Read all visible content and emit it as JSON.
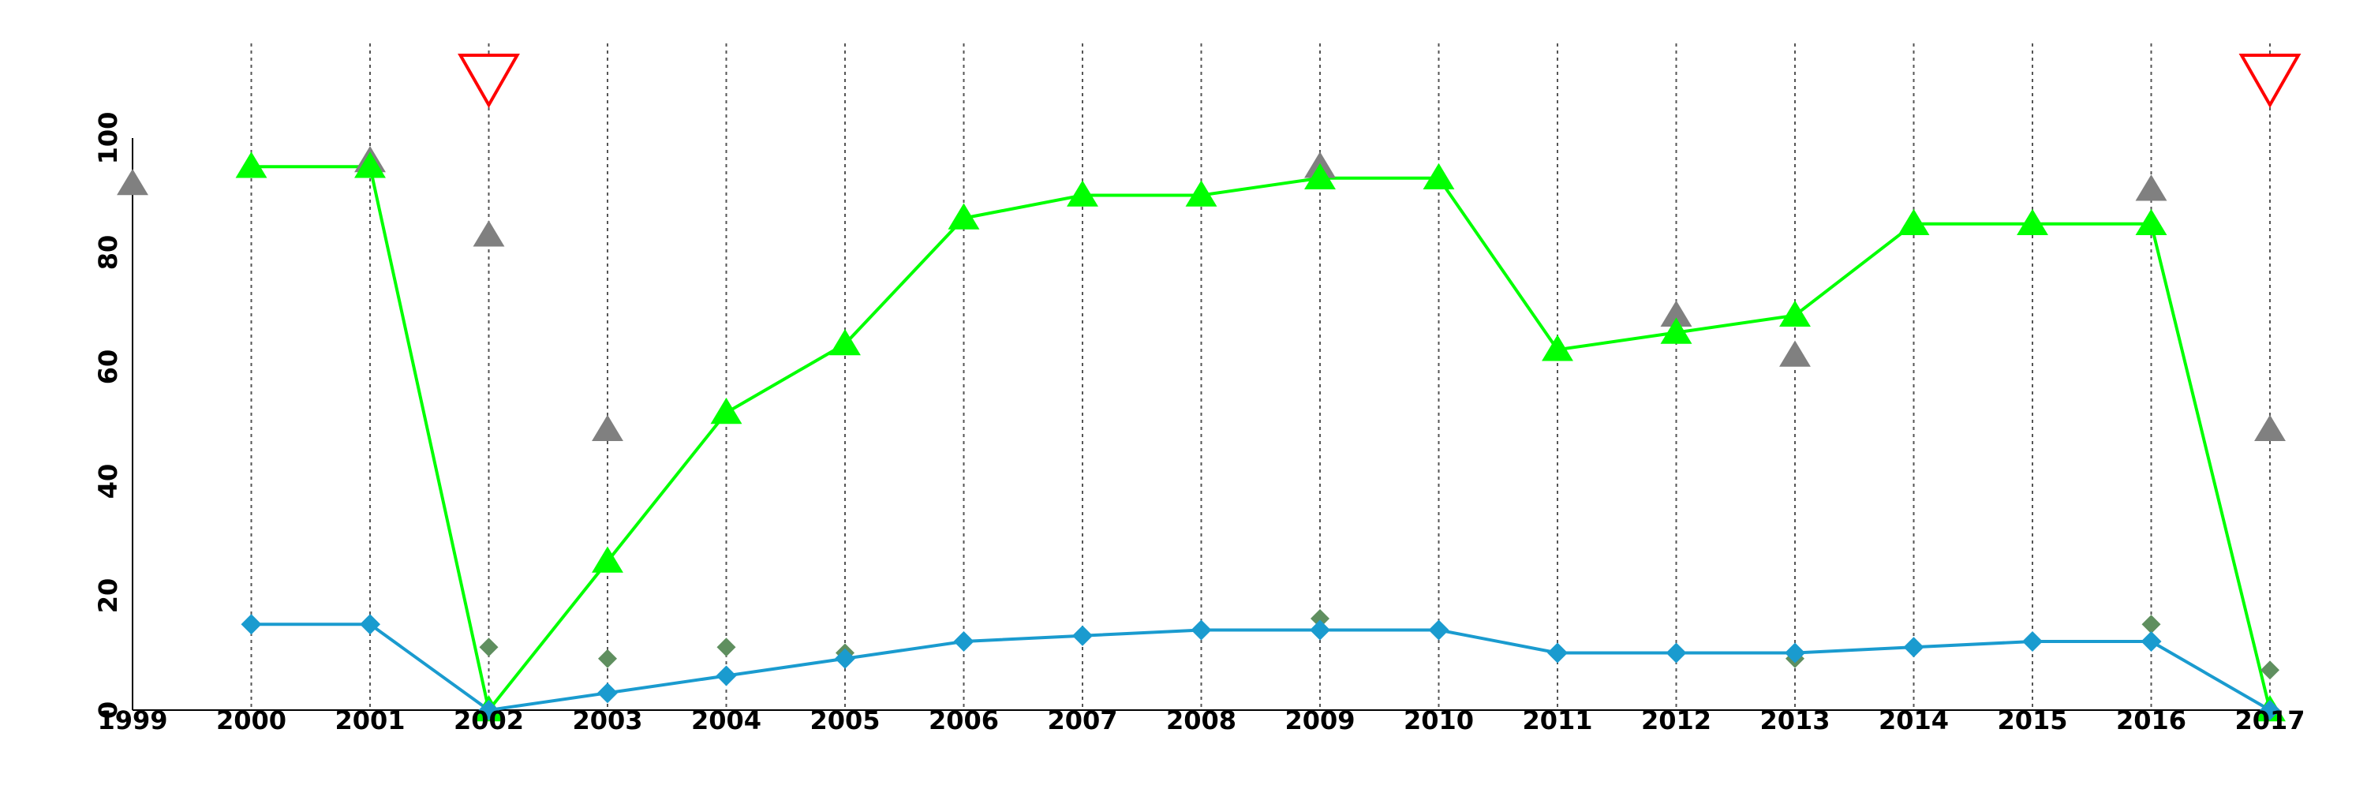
{
  "chart_data": {
    "type": "line",
    "x": [
      1999,
      2000,
      2001,
      2002,
      2003,
      2004,
      2005,
      2006,
      2007,
      2008,
      2009,
      2010,
      2011,
      2012,
      2013,
      2014,
      2015,
      2016,
      2017
    ],
    "xticks": [
      "1999",
      "2000",
      "2001",
      "2002",
      "2003",
      "2004",
      "2005",
      "2006",
      "2007",
      "2008",
      "2009",
      "2010",
      "2011",
      "2012",
      "2013",
      "2014",
      "2015",
      "2016",
      "2017"
    ],
    "yticks": [
      "0",
      "20",
      "40",
      "60",
      "80",
      "100"
    ],
    "ylim": [
      0,
      110
    ],
    "xgrid": "dotted vertical lines at each year from 2000 to 2017",
    "series": [
      {
        "role": "green-line",
        "marker": "triangle",
        "color": "#00ff00",
        "values": [
          null,
          95,
          95,
          0,
          26,
          52,
          64,
          86,
          90,
          90,
          93,
          93,
          63,
          66,
          69,
          85,
          85,
          85,
          0
        ]
      },
      {
        "role": "blue-line",
        "marker": "diamond",
        "color": "#1a9bcf",
        "values": [
          null,
          15,
          15,
          0,
          3,
          6,
          9,
          12,
          13,
          14,
          14,
          14,
          10,
          10,
          10,
          11,
          12,
          12,
          0
        ]
      },
      {
        "role": "gray-triangles",
        "marker": "triangle",
        "color": "#808080",
        "values": [
          92,
          null,
          96,
          83,
          49,
          null,
          null,
          null,
          null,
          null,
          95,
          null,
          null,
          69,
          62,
          null,
          null,
          91,
          49
        ]
      },
      {
        "role": "olive-diamonds",
        "marker": "diamond",
        "color": "#5f8f5f",
        "values": [
          null,
          null,
          null,
          11,
          9,
          11,
          10,
          null,
          null,
          null,
          16,
          null,
          null,
          null,
          9,
          null,
          null,
          15,
          7
        ]
      }
    ],
    "flags": {
      "marker": "inverted-triangle",
      "color": "#ff0000",
      "years": [
        2002,
        2017
      ]
    }
  }
}
